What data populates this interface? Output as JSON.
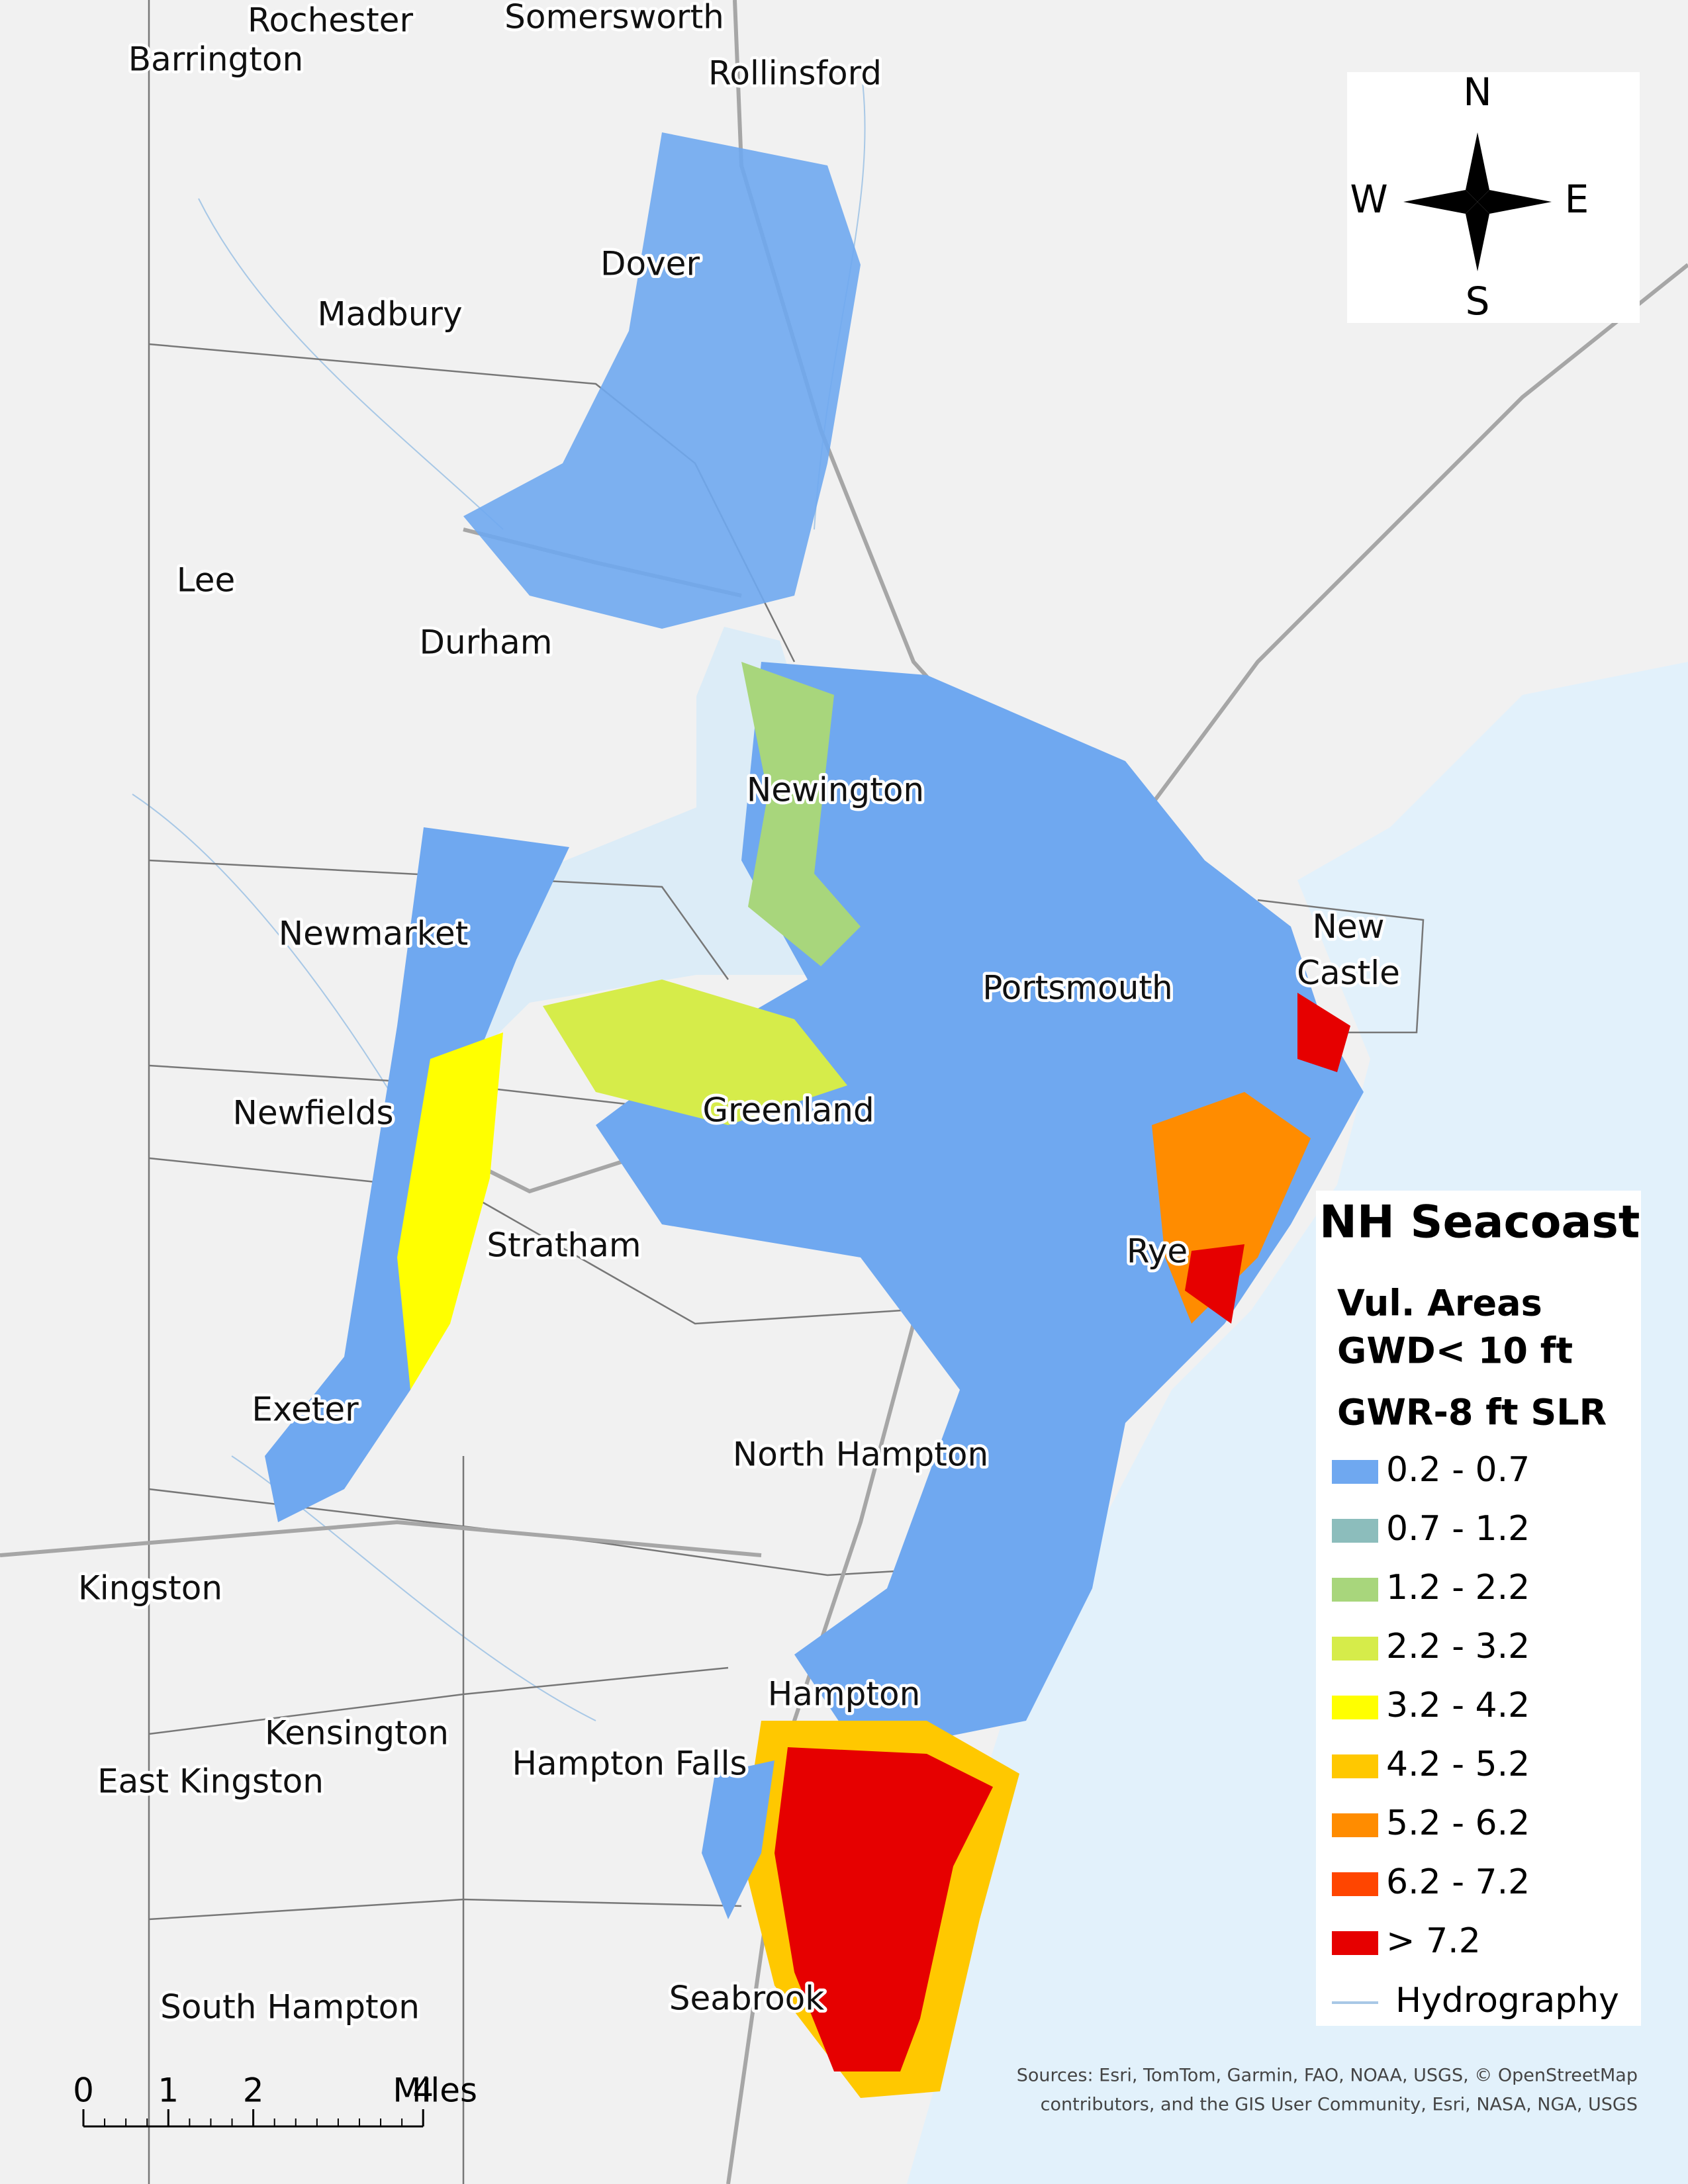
{
  "map": {
    "towns": [
      "Rochester",
      "Somersworth",
      "Barrington",
      "Rollinsford",
      "Dover",
      "Madbury",
      "Lee",
      "Durham",
      "Newington",
      "Newmarket",
      "New Castle",
      "Portsmouth",
      "Newfields",
      "Greenland",
      "Stratham",
      "Rye",
      "Exeter",
      "North Hampton",
      "Kingston",
      "Hampton",
      "Kensington",
      "Hampton Falls",
      "East Kingston",
      "South Hampton",
      "Seabrook"
    ],
    "compass": {
      "n": "N",
      "w": "W",
      "e": "E",
      "s": "S"
    },
    "legend": {
      "title": "NH Seacoast",
      "subtitle": [
        "Vul. Areas",
        "GWD< 10 ft",
        "GWR-8 ft SLR"
      ],
      "classes": [
        {
          "label": "0.2 - 0.7",
          "color": "#6fa8f0"
        },
        {
          "label": "0.7 - 1.2",
          "color": "#8cbdbc"
        },
        {
          "label": "1.2 - 2.2",
          "color": "#a8d67c"
        },
        {
          "label": "2.2 - 3.2",
          "color": "#d6ec4a"
        },
        {
          "label": "3.2 - 4.2",
          "color": "#ffff00"
        },
        {
          "label": "4.2 - 5.2",
          "color": "#ffc800"
        },
        {
          "label": "5.2 - 6.2",
          "color": "#ff8c00"
        },
        {
          "label": "6.2 - 7.2",
          "color": "#ff4500"
        },
        {
          "label": "> 7.2",
          "color": "#e60000"
        }
      ],
      "hydrography": "Hydrography"
    },
    "scale_bar": {
      "ticks": [
        0,
        1,
        2,
        4
      ],
      "unit": "Miles"
    },
    "sources": [
      "Sources: Esri, TomTom, Garmin, FAO, NOAA, USGS, © OpenStreetMap",
      "contributors, and the GIS User Community, Esri, NASA, NGA, USGS"
    ]
  }
}
